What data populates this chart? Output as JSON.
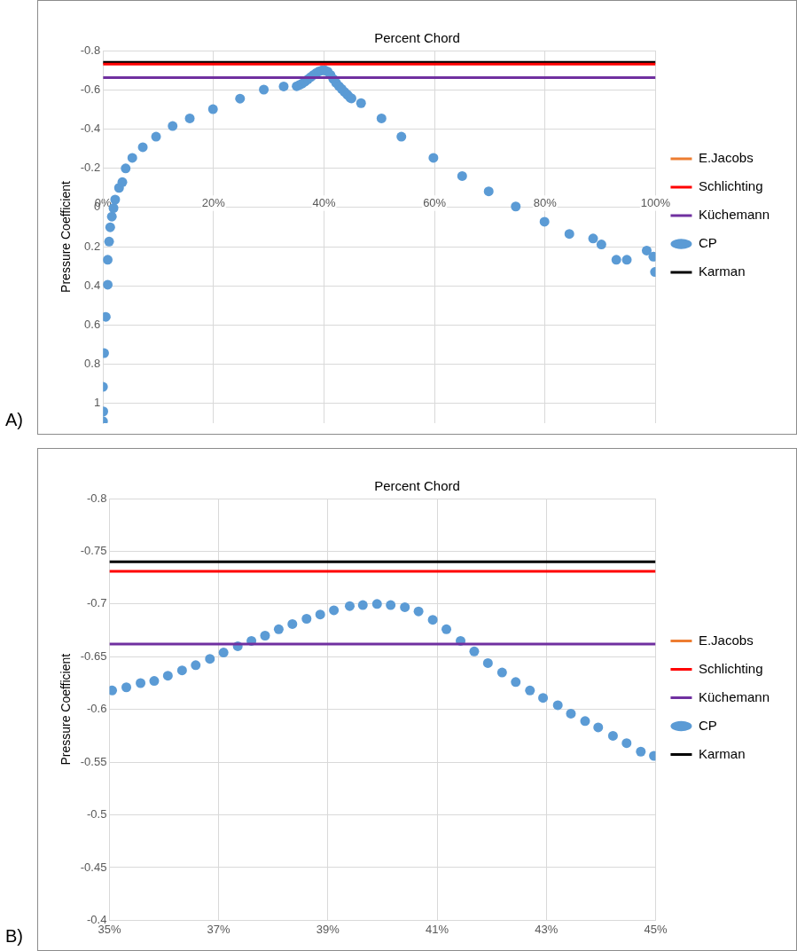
{
  "chart_data": [
    {
      "type": "scatter",
      "xlabel": "Percent Chord",
      "ylabel": "Pressure Coefficient",
      "annotations": [
        "A)"
      ],
      "xlim": [
        0,
        100
      ],
      "xticks": [
        {
          "value": 0,
          "label": "0%"
        },
        {
          "value": 20,
          "label": "20%"
        },
        {
          "value": 40,
          "label": "40%"
        },
        {
          "value": 60,
          "label": "60%"
        },
        {
          "value": 80,
          "label": "80%"
        },
        {
          "value": 100,
          "label": "100%"
        }
      ],
      "ylim": [
        1.1,
        -0.8
      ],
      "yticks": [
        -0.8,
        -0.6,
        -0.4,
        -0.2,
        0,
        0.2,
        0.4,
        0.6,
        0.8,
        1
      ],
      "grid": true,
      "legend": "right",
      "series": [
        {
          "name": "E.Jacobs",
          "color": "#ed7d31",
          "type": "line",
          "marker": "none"
        },
        {
          "name": "Schlichting",
          "color": "#ff0000",
          "type": "line",
          "marker": "none",
          "x": [
            0,
            100
          ],
          "values": [
            -0.731,
            -0.731
          ]
        },
        {
          "name": "Küchemann",
          "color": "#7030a0",
          "type": "line",
          "marker": "none",
          "x": [
            0,
            100
          ],
          "values": [
            -0.662,
            -0.662
          ]
        },
        {
          "name": "CP",
          "color": "#5b9bd5",
          "type": "scatter",
          "marker": "circle",
          "x": [
            0,
            0.05,
            0,
            0.2,
            0.5,
            0.85,
            0.85,
            1.1,
            1.3,
            1.6,
            1.9,
            2.2,
            2.9,
            3.5,
            4.1,
            5.3,
            7.2,
            9.6,
            12.6,
            15.7,
            19.9,
            24.8,
            29.1,
            32.7,
            35.05,
            35.57,
            36.07,
            36.58,
            37.09,
            37.6,
            38.1,
            38.61,
            39.11,
            39.64,
            40.15,
            40.66,
            41.17,
            41.68,
            42.19,
            42.7,
            43.21,
            43.71,
            44.22,
            44.73,
            44.97,
            46.7,
            50.4,
            54,
            59.8,
            65,
            69.8,
            74.7,
            79.9,
            84.4,
            88.7,
            90.2,
            92.9,
            94.8,
            98.4,
            99.6,
            99.9
          ],
          "values": [
            1.09,
            1.04,
            0.915,
            0.743,
            0.558,
            0.394,
            0.267,
            0.174,
            0.101,
            0.047,
            0.003,
            -0.04,
            -0.1,
            -0.129,
            -0.199,
            -0.253,
            -0.307,
            -0.361,
            -0.415,
            -0.454,
            -0.501,
            -0.555,
            -0.601,
            -0.617,
            -0.618,
            -0.625,
            -0.632,
            -0.642,
            -0.654,
            -0.665,
            -0.676,
            -0.686,
            -0.694,
            -0.699,
            -0.699,
            -0.693,
            -0.676,
            -0.655,
            -0.635,
            -0.618,
            -0.604,
            -0.589,
            -0.575,
            -0.56,
            -0.556,
            -0.532,
            -0.454,
            -0.361,
            -0.253,
            -0.16,
            -0.082,
            -0.005,
            0.073,
            0.135,
            0.158,
            0.189,
            0.267,
            0.267,
            0.22,
            0.251,
            0.329
          ]
        },
        {
          "name": "Karman",
          "color": "#000000",
          "type": "line",
          "marker": "none",
          "x": [
            0,
            100
          ],
          "values": [
            -0.74,
            -0.74
          ]
        }
      ]
    },
    {
      "type": "scatter",
      "xlabel": "Percent Chord",
      "ylabel": "Pressure Coefficient",
      "annotations": [
        "B)"
      ],
      "xlim": [
        35,
        45
      ],
      "xticks": [
        {
          "value": 35,
          "label": "35%"
        },
        {
          "value": 37,
          "label": "37%"
        },
        {
          "value": 39,
          "label": "39%"
        },
        {
          "value": 41,
          "label": "41%"
        },
        {
          "value": 43,
          "label": "43%"
        },
        {
          "value": 45,
          "label": "45%"
        }
      ],
      "ylim": [
        -0.4,
        -0.8
      ],
      "yticks": [
        -0.8,
        -0.75,
        -0.7,
        -0.65,
        -0.6,
        -0.55,
        -0.5,
        -0.45,
        -0.4
      ],
      "grid": true,
      "legend": "right",
      "series": [
        {
          "name": "E.Jacobs",
          "color": "#ed7d31",
          "type": "line",
          "marker": "none"
        },
        {
          "name": "Schlichting",
          "color": "#ff0000",
          "type": "line",
          "marker": "none",
          "x": [
            35,
            45
          ],
          "values": [
            -0.731,
            -0.731
          ]
        },
        {
          "name": "Küchemann",
          "color": "#7030a0",
          "type": "line",
          "marker": "none",
          "x": [
            35,
            45
          ],
          "values": [
            -0.662,
            -0.662
          ]
        },
        {
          "name": "CP",
          "color": "#5b9bd5",
          "type": "scatter",
          "marker": "circle",
          "x": [
            35.05,
            35.31,
            35.57,
            35.82,
            36.07,
            36.33,
            36.58,
            36.84,
            37.09,
            37.35,
            37.6,
            37.85,
            38.1,
            38.35,
            38.61,
            38.86,
            39.11,
            39.4,
            39.64,
            39.9,
            40.15,
            40.41,
            40.66,
            40.92,
            41.17,
            41.43,
            41.68,
            41.93,
            42.19,
            42.44,
            42.7,
            42.94,
            43.21,
            43.45,
            43.71,
            43.95,
            44.22,
            44.47,
            44.73,
            44.97
          ],
          "values": [
            -0.618,
            -0.621,
            -0.625,
            -0.627,
            -0.632,
            -0.637,
            -0.642,
            -0.648,
            -0.654,
            -0.66,
            -0.665,
            -0.67,
            -0.676,
            -0.681,
            -0.686,
            -0.69,
            -0.694,
            -0.698,
            -0.699,
            -0.7,
            -0.699,
            -0.697,
            -0.693,
            -0.685,
            -0.676,
            -0.665,
            -0.655,
            -0.644,
            -0.635,
            -0.626,
            -0.618,
            -0.611,
            -0.604,
            -0.596,
            -0.589,
            -0.583,
            -0.575,
            -0.568,
            -0.56,
            -0.556
          ]
        },
        {
          "name": "Karman",
          "color": "#000000",
          "type": "line",
          "marker": "none",
          "x": [
            35,
            45
          ],
          "values": [
            -0.74,
            -0.74
          ]
        }
      ]
    }
  ]
}
